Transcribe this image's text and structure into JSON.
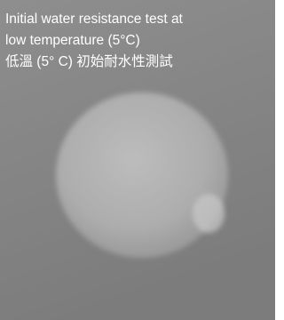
{
  "caption": {
    "lines": [
      "Initial water resistance test at",
      "low temperature (5°C)",
      "低溫 (5° C) 初始耐水性測試"
    ]
  }
}
